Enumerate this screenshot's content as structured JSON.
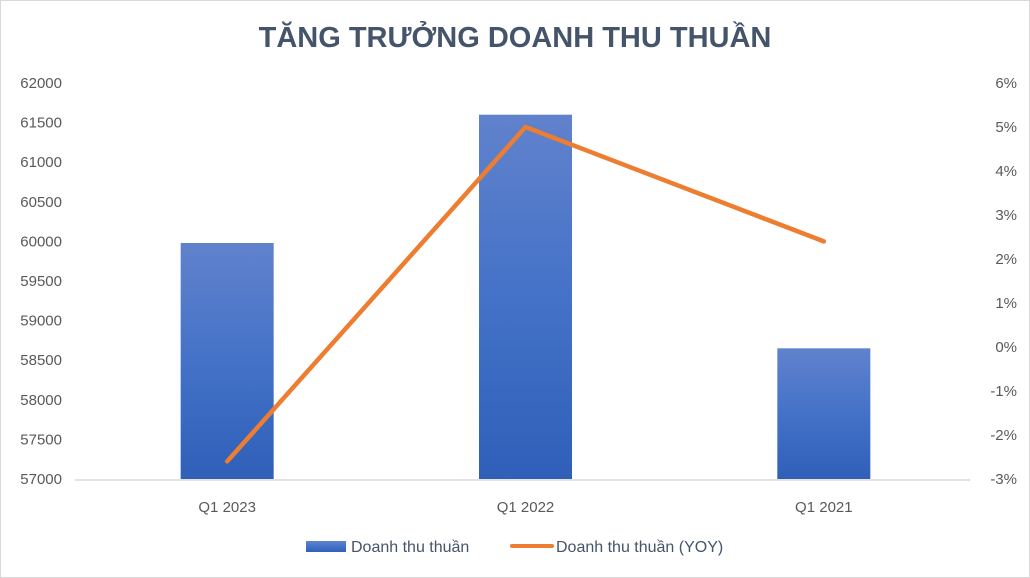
{
  "chart_data": {
    "type": "bar+line",
    "title": "TĂNG TRƯỞNG DOANH THU THUẦN",
    "categories": [
      "Q1 2023",
      "Q1 2022",
      "Q1 2021"
    ],
    "series": [
      {
        "name": "Doanh thu thuần",
        "type": "bar",
        "axis": "left",
        "values": [
          59980,
          61600,
          58650
        ],
        "color": "#4472c4"
      },
      {
        "name": "Doanh thu thuần (YOY)",
        "type": "line",
        "axis": "right",
        "values": [
          -2.6,
          5.0,
          2.4
        ],
        "color": "#ed7d31"
      }
    ],
    "y_left": {
      "ylim": [
        57000,
        62000
      ],
      "ticks": [
        57000,
        57500,
        58000,
        58500,
        59000,
        59500,
        60000,
        60500,
        61000,
        61500,
        62000
      ]
    },
    "y_right": {
      "ylim": [
        -3,
        6
      ],
      "ticks": [
        "-3%",
        "-2%",
        "-1%",
        "0%",
        "1%",
        "2%",
        "3%",
        "4%",
        "5%",
        "6%"
      ]
    },
    "grid": false,
    "legend": "bottom"
  }
}
